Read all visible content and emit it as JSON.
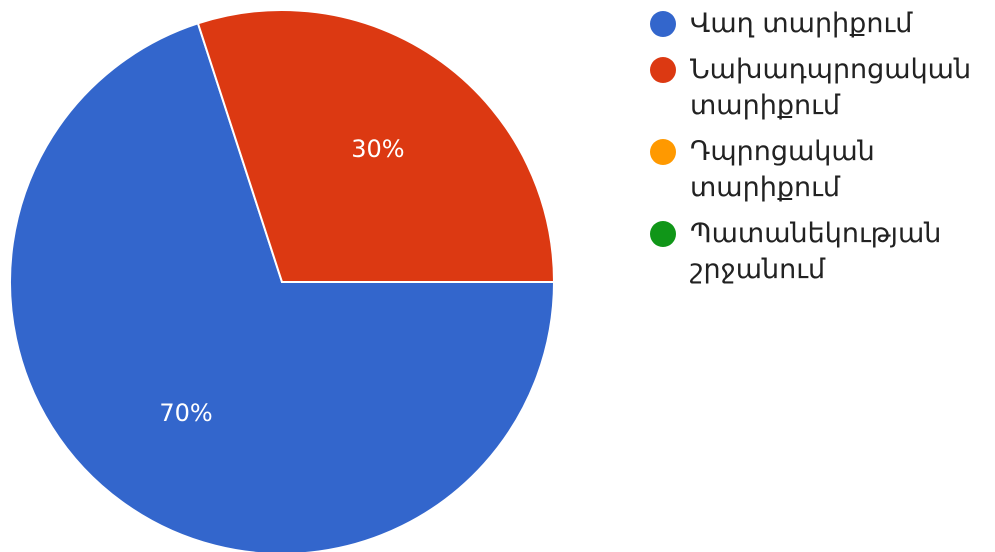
{
  "chart_data": {
    "type": "pie",
    "categories": [
      "Վաղ տարիքում",
      "Նախադպրոցական տարիքում",
      "Դպրոցական տարիքում",
      "Պատանեկության շրջանում"
    ],
    "values": [
      70,
      30,
      0,
      0
    ],
    "value_labels": [
      "70%",
      "30%",
      "",
      ""
    ],
    "colors": [
      "#3366cc",
      "#dc3912",
      "#ff9900",
      "#109618"
    ],
    "start_angle_deg": 90,
    "direction": "clockwise",
    "legend_position": "right",
    "title": ""
  }
}
